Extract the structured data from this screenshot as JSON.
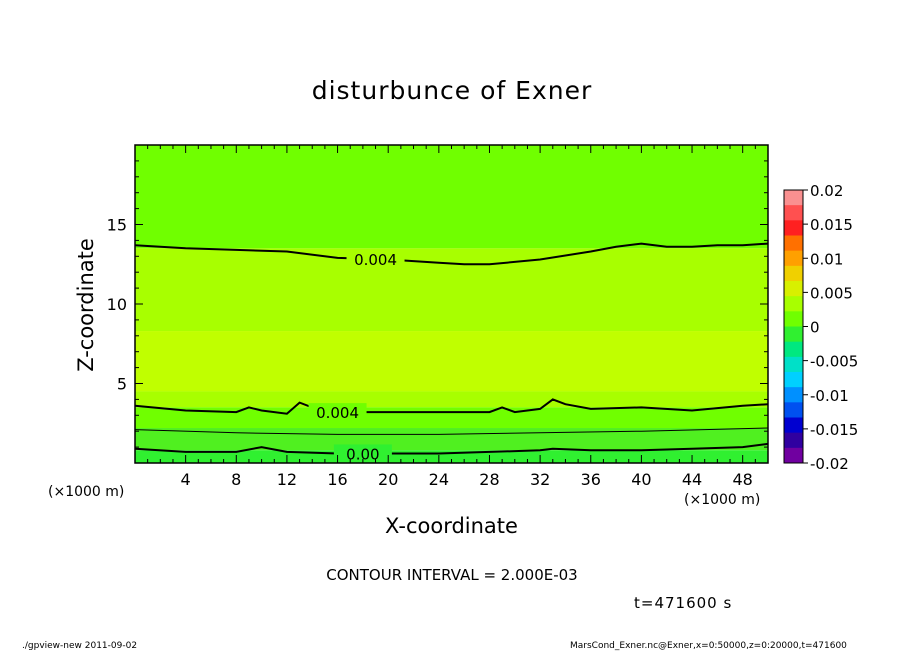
{
  "chart_data": {
    "type": "heatmap",
    "title": "disturbunce of Exner",
    "xlabel": "X-coordinate",
    "ylabel": "Z-coordinate",
    "x_unit_label": "(×1000 m)",
    "xlim": [
      0,
      50
    ],
    "ylim": [
      0,
      20
    ],
    "x_ticks": [
      4,
      8,
      12,
      16,
      20,
      24,
      28,
      32,
      36,
      40,
      44,
      48
    ],
    "y_ticks": [
      5,
      10,
      15
    ],
    "colorbar": {
      "ticks": [
        "0.02",
        "0.015",
        "0.01",
        "0.005",
        "0",
        "-0.005",
        "-0.01",
        "-0.015",
        "-0.02"
      ],
      "levels": [
        0.02,
        0.015,
        0.01,
        0.005,
        0,
        -0.005,
        -0.01,
        -0.015,
        -0.02
      ],
      "bands": [
        "#fa9090",
        "#ff5050",
        "#ff2020",
        "#ff7000",
        "#ffa000",
        "#f0d000",
        "#d8f000",
        "#a8ff00",
        "#70ff00",
        "#30f030",
        "#00e880",
        "#00e0c8",
        "#00d0ff",
        "#0090ff",
        "#0050f0",
        "#0000d0",
        "#3000a0",
        "#7000a0"
      ]
    },
    "contours": [
      {
        "label": "0.004",
        "points": [
          [
            0,
            13.7
          ],
          [
            4,
            13.5
          ],
          [
            8,
            13.4
          ],
          [
            12,
            13.3
          ],
          [
            16,
            12.9
          ],
          [
            20,
            12.8
          ],
          [
            24,
            12.6
          ],
          [
            26,
            12.5
          ],
          [
            28,
            12.5
          ],
          [
            32,
            12.8
          ],
          [
            36,
            13.3
          ],
          [
            38,
            13.6
          ],
          [
            40,
            13.8
          ],
          [
            42,
            13.6
          ],
          [
            44,
            13.6
          ],
          [
            46,
            13.7
          ],
          [
            48,
            13.7
          ],
          [
            50,
            13.8
          ]
        ]
      },
      {
        "label": "0.004",
        "points": [
          [
            0,
            3.6
          ],
          [
            4,
            3.3
          ],
          [
            8,
            3.2
          ],
          [
            9,
            3.5
          ],
          [
            10,
            3.3
          ],
          [
            12,
            3.1
          ],
          [
            13,
            3.8
          ],
          [
            14,
            3.5
          ],
          [
            16,
            3.2
          ],
          [
            20,
            3.2
          ],
          [
            24,
            3.2
          ],
          [
            28,
            3.2
          ],
          [
            29,
            3.5
          ],
          [
            30,
            3.2
          ],
          [
            32,
            3.4
          ],
          [
            33,
            4.0
          ],
          [
            34,
            3.7
          ],
          [
            36,
            3.4
          ],
          [
            40,
            3.5
          ],
          [
            44,
            3.3
          ],
          [
            48,
            3.6
          ],
          [
            50,
            3.7
          ]
        ]
      },
      {
        "label": "0.00",
        "points": [
          [
            0,
            0.9
          ],
          [
            4,
            0.7
          ],
          [
            8,
            0.7
          ],
          [
            10,
            1.0
          ],
          [
            12,
            0.7
          ],
          [
            16,
            0.6
          ],
          [
            20,
            0.6
          ],
          [
            24,
            0.6
          ],
          [
            28,
            0.7
          ],
          [
            32,
            0.8
          ],
          [
            33,
            0.9
          ],
          [
            36,
            0.8
          ],
          [
            40,
            0.8
          ],
          [
            44,
            0.9
          ],
          [
            48,
            1.0
          ],
          [
            50,
            1.2
          ]
        ]
      }
    ],
    "thin_contours": [
      {
        "points": [
          [
            0,
            2.1
          ],
          [
            8,
            1.9
          ],
          [
            16,
            1.8
          ],
          [
            24,
            1.8
          ],
          [
            32,
            1.9
          ],
          [
            40,
            2.0
          ],
          [
            50,
            2.2
          ]
        ]
      }
    ],
    "fill_bands": [
      {
        "color": "#70ff00",
        "from": 13.5,
        "to": 20
      },
      {
        "color": "#a8ff00",
        "from": 8.3,
        "to": 13.5
      },
      {
        "color": "#c0ff00",
        "from": 4.5,
        "to": 8.3
      },
      {
        "color": "#a8ff00",
        "from": 3.5,
        "to": 4.5
      },
      {
        "color": "#70ff00",
        "from": 2.2,
        "to": 3.5
      },
      {
        "color": "#50f020",
        "from": 0.8,
        "to": 2.2
      },
      {
        "color": "#30f030",
        "from": 0,
        "to": 0.8
      }
    ]
  },
  "annotations": {
    "contour_interval": "CONTOUR INTERVAL = 2.000E-03",
    "time": "t=471600 s",
    "footer_left": "./gpview-new  2011-09-02",
    "footer_right": "MarsCond_Exner.nc@Exner,x=0:50000,z=0:20000,t=471600"
  }
}
